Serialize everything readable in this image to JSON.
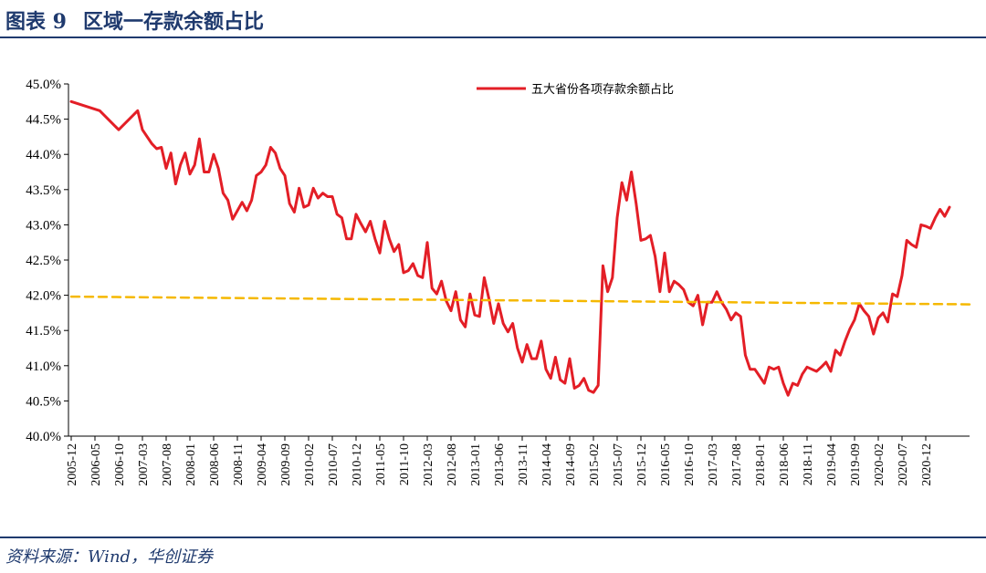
{
  "header": {
    "title": "图表 9",
    "subtitle": "区域一存款余额占比"
  },
  "footer": {
    "source": "资料来源：Wind，华创证券"
  },
  "colors": {
    "series": "#e31e26",
    "trend": "#f5b800",
    "axis": "#000000",
    "frame": "#1f3a6e"
  },
  "chart_data": {
    "type": "line",
    "title": "区域一存款余额占比",
    "xlabel": "",
    "ylabel": "",
    "ylim": [
      40.0,
      45.0
    ],
    "yticks": [
      "40.0%",
      "40.5%",
      "41.0%",
      "41.5%",
      "42.0%",
      "42.5%",
      "43.0%",
      "43.5%",
      "44.0%",
      "44.5%",
      "45.0%"
    ],
    "xticks": [
      "2005-12",
      "2006-05",
      "2006-10",
      "2007-03",
      "2007-08",
      "2008-01",
      "2008-06",
      "2008-11",
      "2009-04",
      "2009-09",
      "2010-02",
      "2010-07",
      "2010-12",
      "2011-05",
      "2011-10",
      "2012-03",
      "2012-08",
      "2013-01",
      "2013-06",
      "2013-11",
      "2014-04",
      "2014-09",
      "2015-02",
      "2015-07",
      "2015-12",
      "2016-05",
      "2016-10",
      "2017-03",
      "2017-08",
      "2018-01",
      "2018-06",
      "2018-11",
      "2019-04",
      "2019-09",
      "2020-02",
      "2020-07",
      "2020-12"
    ],
    "legend": "top-center",
    "series": [
      {
        "name": "五大省份各项存款余额占比",
        "style": "solid",
        "points": [
          [
            0,
            44.75
          ],
          [
            6,
            44.62
          ],
          [
            10,
            44.35
          ],
          [
            14,
            44.62
          ],
          [
            15,
            44.35
          ],
          [
            17,
            44.15
          ],
          [
            18,
            44.08
          ],
          [
            19,
            44.1
          ],
          [
            20,
            43.8
          ],
          [
            21,
            44.02
          ],
          [
            22,
            43.58
          ],
          [
            23,
            43.85
          ],
          [
            24,
            44.02
          ],
          [
            25,
            43.72
          ],
          [
            26,
            43.85
          ],
          [
            27,
            44.22
          ],
          [
            28,
            43.75
          ],
          [
            29,
            43.75
          ],
          [
            30,
            44.0
          ],
          [
            31,
            43.8
          ],
          [
            32,
            43.45
          ],
          [
            33,
            43.35
          ],
          [
            34,
            43.08
          ],
          [
            35,
            43.2
          ],
          [
            36,
            43.32
          ],
          [
            37,
            43.2
          ],
          [
            38,
            43.35
          ],
          [
            39,
            43.7
          ],
          [
            40,
            43.75
          ],
          [
            41,
            43.85
          ],
          [
            42,
            44.1
          ],
          [
            43,
            44.02
          ],
          [
            44,
            43.8
          ],
          [
            45,
            43.7
          ],
          [
            46,
            43.3
          ],
          [
            47,
            43.18
          ],
          [
            48,
            43.52
          ],
          [
            49,
            43.25
          ],
          [
            50,
            43.28
          ],
          [
            51,
            43.52
          ],
          [
            52,
            43.38
          ],
          [
            53,
            43.45
          ],
          [
            54,
            43.4
          ],
          [
            55,
            43.4
          ],
          [
            56,
            43.15
          ],
          [
            57,
            43.1
          ],
          [
            58,
            42.8
          ],
          [
            59,
            42.8
          ],
          [
            60,
            43.15
          ],
          [
            61,
            43.02
          ],
          [
            62,
            42.9
          ],
          [
            63,
            43.05
          ],
          [
            64,
            42.8
          ],
          [
            65,
            42.6
          ],
          [
            66,
            43.05
          ],
          [
            67,
            42.8
          ],
          [
            68,
            42.62
          ],
          [
            69,
            42.72
          ],
          [
            70,
            42.32
          ],
          [
            71,
            42.35
          ],
          [
            72,
            42.45
          ],
          [
            73,
            42.28
          ],
          [
            74,
            42.25
          ],
          [
            75,
            42.75
          ],
          [
            76,
            42.1
          ],
          [
            77,
            42.02
          ],
          [
            78,
            42.2
          ],
          [
            79,
            41.92
          ],
          [
            80,
            41.78
          ],
          [
            81,
            42.05
          ],
          [
            82,
            41.65
          ],
          [
            83,
            41.55
          ],
          [
            84,
            42.02
          ],
          [
            85,
            41.72
          ],
          [
            86,
            41.7
          ],
          [
            87,
            42.25
          ],
          [
            88,
            41.95
          ],
          [
            89,
            41.6
          ],
          [
            90,
            41.88
          ],
          [
            91,
            41.6
          ],
          [
            92,
            41.48
          ],
          [
            93,
            41.6
          ],
          [
            94,
            41.25
          ],
          [
            95,
            41.05
          ],
          [
            96,
            41.3
          ],
          [
            97,
            41.1
          ],
          [
            98,
            41.1
          ],
          [
            99,
            41.35
          ],
          [
            100,
            40.95
          ],
          [
            101,
            40.82
          ],
          [
            102,
            41.12
          ],
          [
            103,
            40.8
          ],
          [
            104,
            40.75
          ],
          [
            105,
            41.1
          ],
          [
            106,
            40.68
          ],
          [
            107,
            40.72
          ],
          [
            108,
            40.82
          ],
          [
            109,
            40.65
          ],
          [
            110,
            40.62
          ],
          [
            111,
            40.72
          ],
          [
            112,
            42.42
          ],
          [
            113,
            42.05
          ],
          [
            114,
            42.25
          ],
          [
            115,
            43.1
          ],
          [
            116,
            43.6
          ],
          [
            117,
            43.35
          ],
          [
            118,
            43.75
          ],
          [
            119,
            43.3
          ],
          [
            120,
            42.78
          ],
          [
            121,
            42.8
          ],
          [
            122,
            42.85
          ],
          [
            123,
            42.55
          ],
          [
            124,
            42.05
          ],
          [
            125,
            42.6
          ],
          [
            126,
            42.05
          ],
          [
            127,
            42.2
          ],
          [
            128,
            42.15
          ],
          [
            129,
            42.08
          ],
          [
            130,
            41.9
          ],
          [
            131,
            41.85
          ],
          [
            132,
            42.0
          ],
          [
            133,
            41.58
          ],
          [
            134,
            41.9
          ],
          [
            135,
            41.9
          ],
          [
            136,
            42.05
          ],
          [
            137,
            41.9
          ],
          [
            138,
            41.8
          ],
          [
            139,
            41.65
          ],
          [
            140,
            41.75
          ],
          [
            141,
            41.7
          ],
          [
            142,
            41.15
          ],
          [
            143,
            40.95
          ],
          [
            144,
            40.95
          ],
          [
            145,
            40.85
          ],
          [
            146,
            40.75
          ],
          [
            147,
            40.98
          ],
          [
            148,
            40.95
          ],
          [
            149,
            40.98
          ],
          [
            150,
            40.75
          ],
          [
            151,
            40.58
          ],
          [
            152,
            40.75
          ],
          [
            153,
            40.72
          ],
          [
            154,
            40.88
          ],
          [
            155,
            40.98
          ],
          [
            156,
            40.95
          ],
          [
            157,
            40.92
          ],
          [
            158,
            40.98
          ],
          [
            159,
            41.05
          ],
          [
            160,
            40.92
          ],
          [
            161,
            41.22
          ],
          [
            162,
            41.15
          ],
          [
            163,
            41.35
          ],
          [
            164,
            41.52
          ],
          [
            165,
            41.65
          ],
          [
            166,
            41.88
          ],
          [
            167,
            41.78
          ],
          [
            168,
            41.7
          ],
          [
            169,
            41.45
          ],
          [
            170,
            41.68
          ],
          [
            171,
            41.75
          ],
          [
            172,
            41.62
          ],
          [
            173,
            42.02
          ],
          [
            174,
            41.98
          ],
          [
            175,
            42.28
          ],
          [
            176,
            42.78
          ],
          [
            177,
            42.72
          ],
          [
            178,
            42.68
          ],
          [
            179,
            43.0
          ],
          [
            180,
            42.98
          ],
          [
            181,
            42.95
          ],
          [
            182,
            43.1
          ],
          [
            183,
            43.22
          ],
          [
            184,
            43.12
          ],
          [
            185,
            43.25
          ]
        ]
      },
      {
        "name": "",
        "style": "dashed",
        "points": [
          [
            0,
            41.98
          ],
          [
            190,
            41.87
          ]
        ]
      }
    ]
  }
}
